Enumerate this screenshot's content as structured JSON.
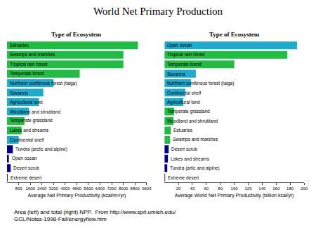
{
  "title": "World Net Primary Production",
  "annotations": [
    "Area (left) and total (right) NPP.  From http://www.sprl.umieh.edu/\nGCL/Notes-1998-Fall/energyflow.htm"
  ],
  "chart_data": [
    {
      "type": "bar",
      "orientation": "horizontal",
      "tick_labels": "x",
      "subtitle": "Type of Ecosystem",
      "xlabel": "Average Net Primary Productivity (kcal/m²/yr)",
      "xlim": [
        0,
        9600
      ],
      "xticks": [
        800,
        1600,
        2400,
        3200,
        4000,
        4800,
        5600,
        6400,
        7200,
        8000,
        8800,
        9600
      ],
      "categories": [
        "Estuaries",
        "Swamps and marshes",
        "Tropical rain forest",
        "Temperate forest",
        "Northern coniferous forest (taiga)",
        "Savanna",
        "Agricultural land",
        "Woodland and shrubland",
        "Temperate grassland",
        "Lakes and streams",
        "Continental shelf",
        "Tundra (arctic and alpine)",
        "Open ocean",
        "Desert scrub",
        "Extreme desert"
      ],
      "values": [
        9000,
        8000,
        8000,
        5000,
        3200,
        2500,
        2200,
        1500,
        1200,
        1000,
        800,
        400,
        125,
        250,
        40
      ],
      "colors": [
        "#22bb44",
        "#22bb44",
        "#22bb44",
        "#22bb44",
        "#22aacc",
        "#22aacc",
        "#22aacc",
        "#22aacc",
        "#22bb44",
        "#22bb44",
        "#22aacc",
        "#000080",
        "#000080",
        "#000080",
        "#000080"
      ]
    },
    {
      "type": "bar",
      "orientation": "horizontal",
      "tick_labels": "x",
      "subtitle": "Type of Ecosystem",
      "xlabel": "Average World Net Primary Productivity (billion kcal/yr)",
      "xlim": [
        0,
        200
      ],
      "xticks": [
        20,
        40,
        60,
        80,
        100,
        120,
        140,
        160,
        180,
        200
      ],
      "categories": [
        "Open ocean",
        "Tropical rain forest",
        "Temperate forest",
        "Savanna",
        "Northern coniferous forest (taiga)",
        "Continental shelf",
        "Agricultural land",
        "Temperate grassland",
        "Woodland and shrubland",
        "Estuaries",
        "Swamps and marshes",
        "Desert scrub",
        "Lakes and streams",
        "Tundra (artic and alpine)",
        "Extreme desert"
      ],
      "values": [
        190,
        176,
        100,
        45,
        38,
        30,
        27,
        14,
        13,
        9,
        8,
        6,
        5,
        4,
        1
      ],
      "colors": [
        "#22aacc",
        "#22bb44",
        "#22bb44",
        "#22aacc",
        "#22aacc",
        "#22aacc",
        "#22aacc",
        "#22bb44",
        "#22bb44",
        "#22bb44",
        "#22bb44",
        "#000080",
        "#000080",
        "#000080",
        "#000080"
      ]
    }
  ]
}
